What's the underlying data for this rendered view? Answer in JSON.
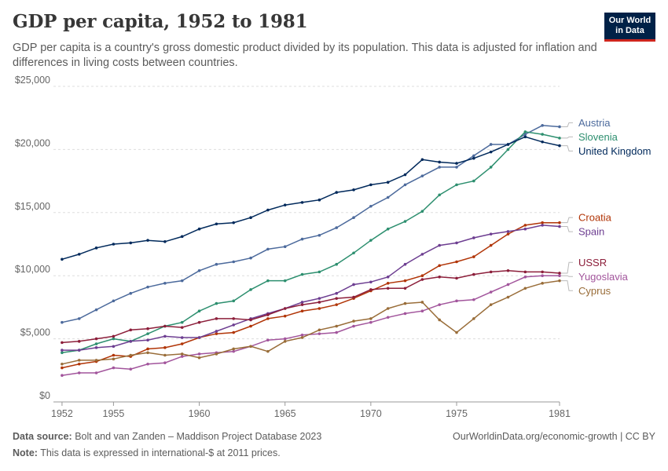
{
  "header": {
    "title": "GDP per capita, 1952 to 1981",
    "subtitle": "GDP per capita is a country's gross domestic product divided by its population. This data is adjusted for inflation and differences in living costs between countries.",
    "logo": "Our World in Data"
  },
  "footer": {
    "source_label": "Data source:",
    "source_text": "Bolt and van Zanden – Maddison Project Database 2023",
    "note_label": "Note:",
    "note_text": "This data is expressed in international-$ at 2011 prices.",
    "credit": "OurWorldinData.org/economic-growth | CC BY"
  },
  "chart_data": {
    "type": "line",
    "title": "GDP per capita, 1952 to 1981",
    "x": [
      1952,
      1953,
      1954,
      1955,
      1956,
      1957,
      1958,
      1959,
      1960,
      1961,
      1962,
      1963,
      1964,
      1965,
      1966,
      1967,
      1968,
      1969,
      1970,
      1971,
      1972,
      1973,
      1974,
      1975,
      1976,
      1977,
      1978,
      1979,
      1980,
      1981
    ],
    "xlim": [
      1951.5,
      1981
    ],
    "x_ticks": [
      1952,
      1955,
      1960,
      1965,
      1970,
      1975,
      1981
    ],
    "ylim": [
      0,
      25000
    ],
    "y_ticks": [
      0,
      5000,
      10000,
      15000,
      20000,
      25000
    ],
    "y_tick_labels": [
      "$0",
      "$5,000",
      "$10,000",
      "$15,000",
      "$20,000",
      "$25,000"
    ],
    "grid": "horizontal-dashed",
    "legend": "right-end-labels",
    "series": [
      {
        "name": "Austria",
        "color": "#4c6a9c",
        "values": [
          6300,
          6600,
          7300,
          8000,
          8600,
          9100,
          9400,
          9600,
          10400,
          10900,
          11100,
          11400,
          12100,
          12300,
          12900,
          13200,
          13800,
          14600,
          15500,
          16200,
          17200,
          17900,
          18600,
          18600,
          19500,
          20400,
          20400,
          21200,
          21900,
          21800
        ]
      },
      {
        "name": "Slovenia",
        "color": "#2d8f6f",
        "values": [
          3900,
          4100,
          4600,
          5000,
          4800,
          5400,
          6000,
          6300,
          7200,
          7800,
          8000,
          8900,
          9600,
          9600,
          10100,
          10300,
          10900,
          11800,
          12800,
          13700,
          14300,
          15100,
          16400,
          17200,
          17500,
          18600,
          20000,
          21400,
          21200,
          20900
        ]
      },
      {
        "name": "United Kingdom",
        "color": "#00295b",
        "values": [
          11300,
          11700,
          12200,
          12500,
          12600,
          12800,
          12700,
          13100,
          13700,
          14100,
          14200,
          14600,
          15200,
          15600,
          15800,
          16000,
          16600,
          16800,
          17200,
          17400,
          18000,
          19200,
          19000,
          18900,
          19300,
          19800,
          20400,
          21000,
          20600,
          20300
        ]
      },
      {
        "name": "Croatia",
        "color": "#b13507",
        "values": [
          2700,
          3000,
          3200,
          3700,
          3600,
          4200,
          4300,
          4600,
          5100,
          5400,
          5500,
          6000,
          6600,
          6800,
          7200,
          7400,
          7700,
          8200,
          8800,
          9400,
          9600,
          10000,
          10800,
          11100,
          11500,
          12400,
          13300,
          14000,
          14200,
          14200
        ]
      },
      {
        "name": "Spain",
        "color": "#6d3e91",
        "values": [
          4100,
          4100,
          4300,
          4400,
          4800,
          4900,
          5200,
          5100,
          5100,
          5600,
          6100,
          6600,
          7000,
          7400,
          7900,
          8200,
          8600,
          9300,
          9500,
          9900,
          10900,
          11700,
          12400,
          12600,
          13000,
          13300,
          13500,
          13700,
          14000,
          13900
        ]
      },
      {
        "name": "USSR",
        "color": "#8c1e3a",
        "values": [
          4700,
          4800,
          5000,
          5200,
          5700,
          5800,
          6000,
          5900,
          6300,
          6600,
          6600,
          6500,
          6900,
          7400,
          7700,
          7900,
          8200,
          8300,
          8900,
          9000,
          9000,
          9700,
          9900,
          9800,
          10100,
          10300,
          10400,
          10300,
          10300,
          10200
        ]
      },
      {
        "name": "Yugoslavia",
        "color": "#a2559c",
        "values": [
          2100,
          2300,
          2300,
          2700,
          2600,
          3000,
          3100,
          3600,
          3800,
          3900,
          4000,
          4400,
          4900,
          5000,
          5300,
          5400,
          5500,
          6000,
          6300,
          6700,
          7000,
          7200,
          7700,
          8000,
          8100,
          8700,
          9300,
          9900,
          10000,
          10000
        ]
      },
      {
        "name": "Cyprus",
        "color": "#996d39",
        "values": [
          3000,
          3300,
          3300,
          3400,
          3700,
          3900,
          3700,
          3800,
          3500,
          3800,
          4200,
          4400,
          4000,
          4800,
          5100,
          5700,
          6000,
          6400,
          6600,
          7400,
          7800,
          7900,
          6500,
          5500,
          6600,
          7700,
          8300,
          9000,
          9400,
          9600
        ]
      }
    ]
  }
}
